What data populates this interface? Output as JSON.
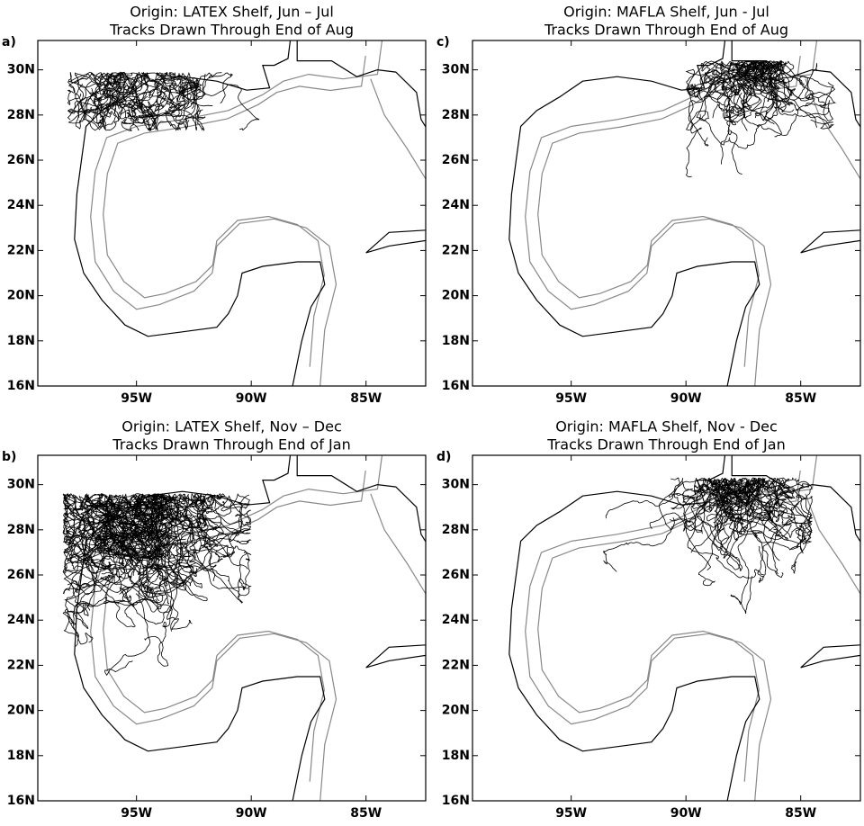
{
  "panels": [
    {
      "letter": "a)",
      "title": [
        "Origin: LATEX Shelf, Jun – Jul",
        "Tracks Drawn Through End of Aug"
      ]
    },
    {
      "letter": "b)",
      "title": [
        "Origin: LATEX Shelf, Nov – Dec",
        "Tracks Drawn Through End of Jan"
      ]
    },
    {
      "letter": "c)",
      "title": [
        "Origin: MAFLA Shelf, Jun - Jul",
        "Tracks Drawn Through End of Aug"
      ]
    },
    {
      "letter": "d)",
      "title": [
        "Origin: MAFLA Shelf, Nov - Dec",
        "Tracks Drawn Through End of Jan"
      ]
    }
  ],
  "yticks": [
    {
      "value": 16,
      "label": "16N"
    },
    {
      "value": 18,
      "label": "18N"
    },
    {
      "value": 20,
      "label": "20N"
    },
    {
      "value": 22,
      "label": "22N"
    },
    {
      "value": 24,
      "label": "24N"
    },
    {
      "value": 26,
      "label": "26N"
    },
    {
      "value": 28,
      "label": "28N"
    },
    {
      "value": 30,
      "label": "30N"
    }
  ],
  "xticks": [
    {
      "value": -95,
      "label": "95W"
    },
    {
      "value": -90,
      "label": "90W"
    },
    {
      "value": -85,
      "label": "85W"
    }
  ]
}
